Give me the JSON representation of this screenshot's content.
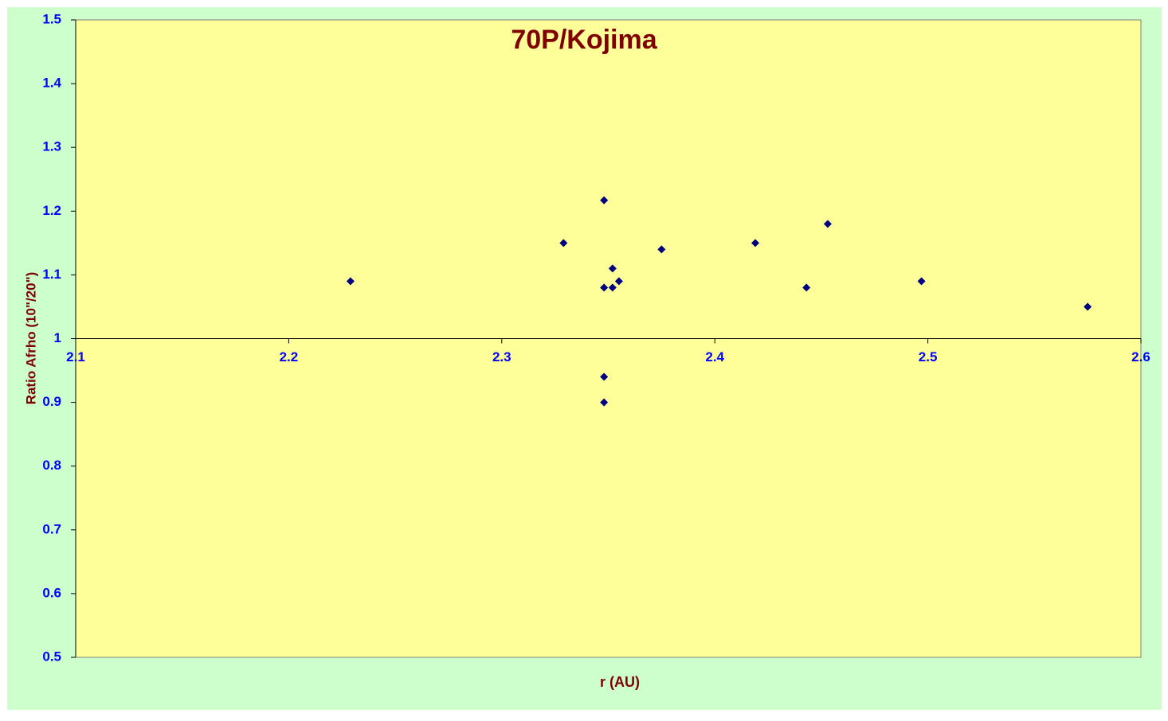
{
  "chart_data": {
    "type": "scatter",
    "title": "70P/Kojima",
    "x_label": "r (AU)",
    "y_label": "Ratio Afrho (10\"/20\")",
    "x": [
      2.229,
      2.329,
      2.348,
      2.348,
      2.352,
      2.352,
      2.355,
      2.375,
      2.419,
      2.443,
      2.453,
      2.497,
      2.575,
      2.348,
      2.348
    ],
    "values": [
      1.09,
      1.15,
      1.217,
      1.08,
      1.11,
      1.08,
      1.09,
      1.14,
      1.15,
      1.08,
      1.18,
      1.09,
      1.05,
      0.94,
      0.9
    ],
    "color": "#000080",
    "xlim": [
      2.1,
      2.6
    ],
    "xticks": [
      2.1,
      2.2,
      2.3,
      2.4,
      2.5,
      2.6
    ],
    "ylim": [
      0.5,
      1.5
    ],
    "yticks": [
      0.5,
      0.6,
      0.7,
      0.8,
      0.9,
      1,
      1.1,
      1.2,
      1.3,
      1.4,
      1.5
    ],
    "x_axis_crosses_at": 1,
    "grid": false
  }
}
